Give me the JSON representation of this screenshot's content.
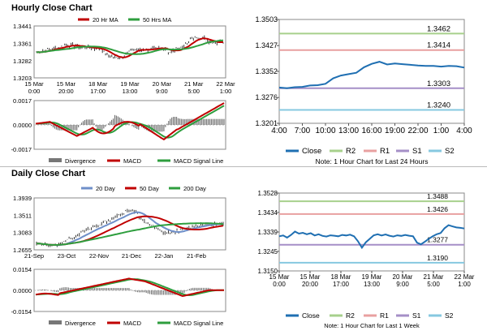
{
  "hourly": {
    "title": "Hourly Close Chart",
    "price": {
      "legend": [
        {
          "name": "20 Hr MA",
          "color": "#c00000"
        },
        {
          "name": "50 Hrs MA",
          "color": "#2e9e3e"
        }
      ],
      "yticks": [
        "1.3441",
        "1.3361",
        "1.3282",
        "1.3203"
      ],
      "ylim": [
        1.3203,
        1.3441
      ],
      "xticks": [
        [
          "15 Mar",
          "0:00"
        ],
        [
          "15 Mar",
          "20:00"
        ],
        [
          "18 Mar",
          "17:00"
        ],
        [
          "19 Mar",
          "13:00"
        ],
        [
          "20 Mar",
          "9:00"
        ],
        [
          "21 Mar",
          "5:00"
        ],
        [
          "22 Mar",
          "1:00"
        ]
      ]
    },
    "macd": {
      "yticks": [
        "0.0017",
        "0.0000",
        "-0.0017"
      ],
      "ylim": [
        -0.0017,
        0.0017
      ],
      "legend": [
        {
          "name": "Divergence",
          "color": "#777777"
        },
        {
          "name": "MACD",
          "color": "#c00000"
        },
        {
          "name": "MACD Signal Line",
          "color": "#2e9e3e"
        }
      ]
    }
  },
  "daily": {
    "title": "Daily Close Chart",
    "price": {
      "legend": [
        {
          "name": "20 Day",
          "color": "#6f8fc9"
        },
        {
          "name": "50 Day",
          "color": "#c00000"
        },
        {
          "name": "200 Day",
          "color": "#2e9e3e"
        }
      ],
      "yticks": [
        "1.3939",
        "1.3511",
        "1.3083",
        "1.2655"
      ],
      "ylim": [
        1.2655,
        1.3939
      ],
      "xticks": [
        "21-Sep",
        "23-Oct",
        "22-Nov",
        "21-Dec",
        "22-Jan",
        "21-Feb"
      ]
    },
    "macd": {
      "yticks": [
        "0.0154",
        "0.0000",
        "-0.0154"
      ],
      "ylim": [
        -0.0154,
        0.0154
      ],
      "legend": [
        {
          "name": "Divergence",
          "color": "#777777"
        },
        {
          "name": "MACD",
          "color": "#c00000"
        },
        {
          "name": "MACD Signal Line",
          "color": "#2e9e3e"
        }
      ]
    }
  },
  "chart_data": [
    {
      "type": "line",
      "id": "last24",
      "title": "",
      "yticks": [
        "1.3503",
        "1.3427",
        "1.3352",
        "1.3276",
        "1.3201"
      ],
      "ylim": [
        1.3201,
        1.3503
      ],
      "xticks": [
        "4:00",
        "7:00",
        "10:00",
        "13:00",
        "16:00",
        "19:00",
        "22:00",
        "1:00",
        "4:00"
      ],
      "series": [
        {
          "name": "Close",
          "color": "#1f6fb2",
          "x": [
            0,
            1,
            2,
            3,
            4,
            5,
            6,
            7,
            8,
            9,
            10,
            11,
            12,
            13,
            14,
            15,
            16,
            17,
            18,
            19,
            20,
            21,
            22,
            23,
            24
          ],
          "values": [
            1.3305,
            1.3303,
            1.3306,
            1.3307,
            1.3311,
            1.3312,
            1.3316,
            1.3332,
            1.334,
            1.3344,
            1.3348,
            1.3364,
            1.3374,
            1.338,
            1.3372,
            1.3375,
            1.3373,
            1.3371,
            1.3369,
            1.3368,
            1.3368,
            1.3366,
            1.3368,
            1.3367,
            1.3363
          ]
        }
      ],
      "levels": [
        {
          "name": "R2",
          "value": 1.3462,
          "label": "1.3462",
          "color": "#a7d08c"
        },
        {
          "name": "R1",
          "value": 1.3414,
          "label": "1.3414",
          "color": "#e8a0a0"
        },
        {
          "name": "S1",
          "value": 1.3303,
          "label": "1.3303",
          "color": "#a58fc7"
        },
        {
          "name": "S2",
          "value": 1.324,
          "label": "1.3240",
          "color": "#86c8e0"
        }
      ],
      "legend": [
        "Close",
        "R2",
        "R1",
        "S1",
        "S2"
      ],
      "note": "Note: 1 Hour Chart for Last 24 Hours"
    },
    {
      "type": "line",
      "id": "lastweek",
      "title": "",
      "yticks": [
        "1.3528",
        "1.3434",
        "1.3339",
        "1.3245",
        "1.3150"
      ],
      "ylim": [
        1.315,
        1.3528
      ],
      "xticks": [
        [
          "15 Mar",
          "0:00"
        ],
        [
          "15 Mar",
          "20:00"
        ],
        [
          "18 Mar",
          "17:00"
        ],
        [
          "19 Mar",
          "13:00"
        ],
        [
          "20 Mar",
          "9:00"
        ],
        [
          "21 Mar",
          "5:00"
        ],
        [
          "22 Mar",
          "1:00"
        ]
      ],
      "series": [
        {
          "name": "Close",
          "color": "#1f6fb2",
          "x": [
            0,
            1,
            2,
            3,
            4,
            5,
            6,
            7,
            8,
            9,
            10,
            11,
            12,
            13,
            14,
            15,
            16,
            17,
            18,
            19,
            20,
            21,
            22,
            23,
            24,
            25,
            26,
            27,
            28,
            29,
            30,
            31,
            32,
            33,
            34,
            35,
            36,
            37,
            38,
            39,
            40,
            41,
            42,
            43,
            44,
            45,
            46,
            47
          ],
          "values": [
            1.3318,
            1.3322,
            1.3312,
            1.3325,
            1.3341,
            1.3331,
            1.3335,
            1.3328,
            1.3333,
            1.3322,
            1.3328,
            1.332,
            1.3317,
            1.3323,
            1.3321,
            1.3318,
            1.3325,
            1.3322,
            1.3326,
            1.3318,
            1.3294,
            1.3263,
            1.3289,
            1.3306,
            1.3323,
            1.3328,
            1.3322,
            1.3327,
            1.3321,
            1.3317,
            1.3323,
            1.332,
            1.3325,
            1.3321,
            1.3318,
            1.3287,
            1.3279,
            1.3292,
            1.3306,
            1.3318,
            1.3328,
            1.3334,
            1.3357,
            1.3372,
            1.3366,
            1.3361,
            1.3359,
            1.3356
          ]
        }
      ],
      "levels": [
        {
          "name": "R2",
          "value": 1.3488,
          "label": "1.3488",
          "color": "#a7d08c"
        },
        {
          "name": "R1",
          "value": 1.3426,
          "label": "1.3426",
          "color": "#e8a0a0"
        },
        {
          "name": "S1",
          "value": 1.3277,
          "label": "1.3277",
          "color": "#a58fc7"
        },
        {
          "name": "S2",
          "value": 1.319,
          "label": "1.3190",
          "color": "#86c8e0"
        }
      ],
      "legend": [
        "Close",
        "R2",
        "R1",
        "S1",
        "S2"
      ],
      "note": "Note: 1 Hour Chart for Last 1 Week"
    }
  ]
}
